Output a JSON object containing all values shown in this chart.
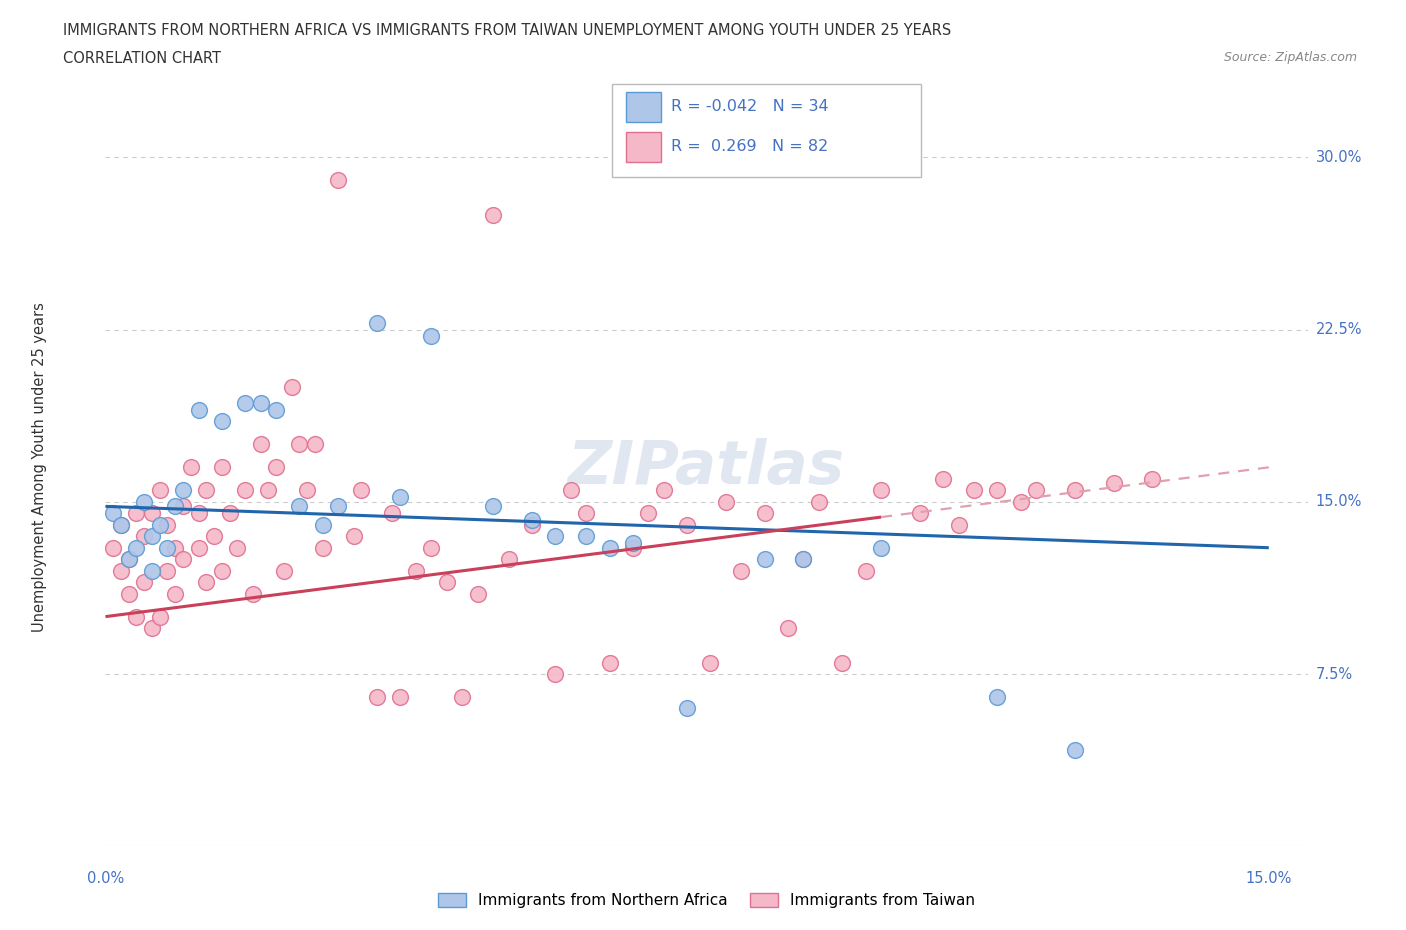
{
  "title_line1": "IMMIGRANTS FROM NORTHERN AFRICA VS IMMIGRANTS FROM TAIWAN UNEMPLOYMENT AMONG YOUTH UNDER 25 YEARS",
  "title_line2": "CORRELATION CHART",
  "source_text": "Source: ZipAtlas.com",
  "ylabel": "Unemployment Among Youth under 25 years",
  "xlim": [
    0.0,
    0.155
  ],
  "ylim": [
    0.0,
    0.33
  ],
  "ytick_positions": [
    0.075,
    0.15,
    0.225,
    0.3
  ],
  "ytick_labels": [
    "7.5%",
    "15.0%",
    "22.5%",
    "30.0%"
  ],
  "background_color": "#ffffff",
  "scatter_blue_color": "#aec6e8",
  "scatter_pink_color": "#f4b8c8",
  "scatter_blue_edge": "#5b9bd5",
  "scatter_pink_edge": "#e07090",
  "line_blue_color": "#2166ac",
  "line_pink_color": "#c9405a",
  "line_pink_dashed_color": "#e0a0b0",
  "watermark_color": "#ccd8e8",
  "legend_R_blue": "-0.042",
  "legend_N_blue": "34",
  "legend_R_pink": "0.269",
  "legend_N_pink": "82",
  "legend_label_blue": "Immigrants from Northern Africa",
  "legend_label_pink": "Immigrants from Taiwan",
  "blue_x": [
    0.001,
    0.002,
    0.003,
    0.004,
    0.005,
    0.006,
    0.006,
    0.007,
    0.008,
    0.009,
    0.01,
    0.012,
    0.015,
    0.018,
    0.02,
    0.022,
    0.025,
    0.028,
    0.03,
    0.035,
    0.038,
    0.042,
    0.05,
    0.055,
    0.058,
    0.062,
    0.065,
    0.068,
    0.075,
    0.085,
    0.09,
    0.1,
    0.115,
    0.125
  ],
  "blue_y": [
    0.145,
    0.14,
    0.125,
    0.13,
    0.15,
    0.135,
    0.12,
    0.14,
    0.13,
    0.148,
    0.155,
    0.19,
    0.185,
    0.193,
    0.193,
    0.19,
    0.148,
    0.14,
    0.148,
    0.228,
    0.152,
    0.222,
    0.148,
    0.142,
    0.135,
    0.135,
    0.13,
    0.132,
    0.06,
    0.125,
    0.125,
    0.13,
    0.065,
    0.042
  ],
  "pink_x": [
    0.001,
    0.002,
    0.002,
    0.003,
    0.003,
    0.004,
    0.004,
    0.005,
    0.005,
    0.006,
    0.006,
    0.007,
    0.007,
    0.008,
    0.008,
    0.009,
    0.009,
    0.01,
    0.01,
    0.011,
    0.012,
    0.012,
    0.013,
    0.013,
    0.014,
    0.015,
    0.015,
    0.016,
    0.017,
    0.018,
    0.019,
    0.02,
    0.021,
    0.022,
    0.023,
    0.024,
    0.025,
    0.026,
    0.027,
    0.028,
    0.03,
    0.032,
    0.033,
    0.035,
    0.037,
    0.038,
    0.04,
    0.042,
    0.044,
    0.046,
    0.048,
    0.05,
    0.052,
    0.055,
    0.058,
    0.06,
    0.062,
    0.065,
    0.068,
    0.07,
    0.072,
    0.075,
    0.078,
    0.08,
    0.082,
    0.085,
    0.088,
    0.09,
    0.092,
    0.095,
    0.098,
    0.1,
    0.105,
    0.108,
    0.11,
    0.112,
    0.115,
    0.118,
    0.12,
    0.125,
    0.13,
    0.135
  ],
  "pink_y": [
    0.13,
    0.12,
    0.14,
    0.11,
    0.125,
    0.1,
    0.145,
    0.115,
    0.135,
    0.095,
    0.145,
    0.1,
    0.155,
    0.12,
    0.14,
    0.11,
    0.13,
    0.125,
    0.148,
    0.165,
    0.145,
    0.13,
    0.155,
    0.115,
    0.135,
    0.165,
    0.12,
    0.145,
    0.13,
    0.155,
    0.11,
    0.175,
    0.155,
    0.165,
    0.12,
    0.2,
    0.175,
    0.155,
    0.175,
    0.13,
    0.29,
    0.135,
    0.155,
    0.065,
    0.145,
    0.065,
    0.12,
    0.13,
    0.115,
    0.065,
    0.11,
    0.275,
    0.125,
    0.14,
    0.075,
    0.155,
    0.145,
    0.08,
    0.13,
    0.145,
    0.155,
    0.14,
    0.08,
    0.15,
    0.12,
    0.145,
    0.095,
    0.125,
    0.15,
    0.08,
    0.12,
    0.155,
    0.145,
    0.16,
    0.14,
    0.155,
    0.155,
    0.15,
    0.155,
    0.155,
    0.158,
    0.16
  ]
}
